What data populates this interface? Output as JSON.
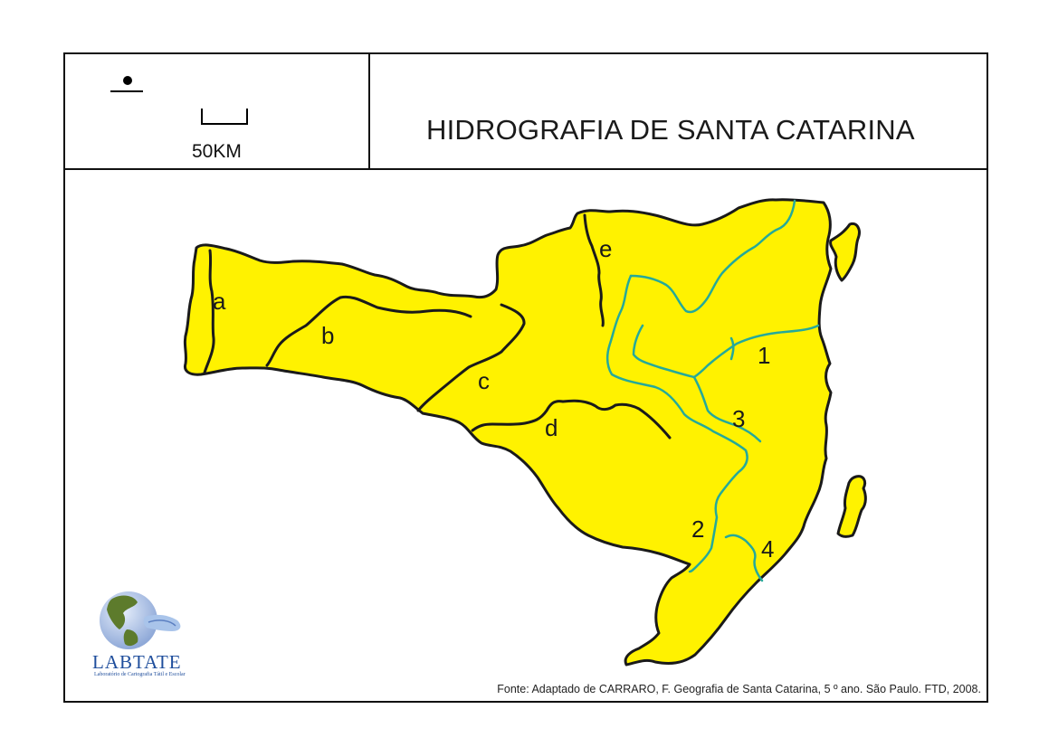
{
  "map": {
    "title": "HIDROGRAFIA DE SANTA CATARINA",
    "scale_label": "50KM",
    "source": "Fonte: Adaptado de CARRARO, F. Geografia de Santa Catarina, 5 º ano. São Paulo. FTD, 2008.",
    "region_labels": [
      "a",
      "b",
      "c",
      "d",
      "e"
    ],
    "river_labels": [
      "1",
      "2",
      "3",
      "4"
    ],
    "colors": {
      "land": "#fff200",
      "outline": "#1a1a1a",
      "inland_rivers": "#1a1a1a",
      "coastal_rivers": "#25a99a",
      "frame": "#111111"
    }
  },
  "logo": {
    "name": "LABTATE",
    "subtitle": "Laboratório de Cartografia Tátil e Escolar",
    "icon": "globe-hand-icon"
  },
  "icons": {
    "north": "north-arrow-icon",
    "scale": "scale-bar-icon"
  }
}
